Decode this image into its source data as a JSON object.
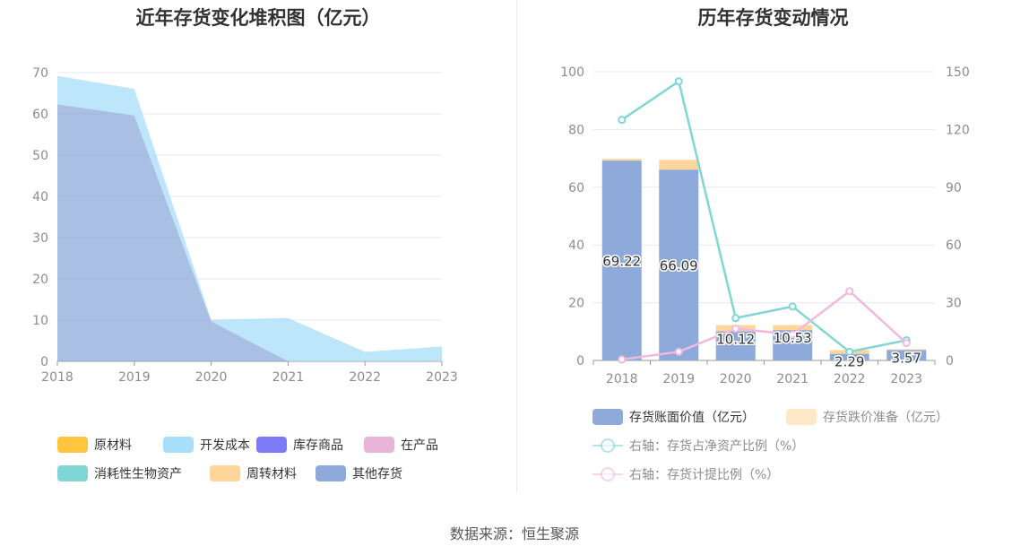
{
  "left_title": "近年存货变化堆积图（亿元）",
  "right_title": "历年存货变动情况",
  "source": "数据来源：恒生聚源",
  "chart_data": [
    {
      "type": "area",
      "stacked": true,
      "title": "近年存货变化堆积图（亿元）",
      "categories": [
        "2018",
        "2019",
        "2020",
        "2021",
        "2022",
        "2023"
      ],
      "ylim": [
        0,
        70
      ],
      "yticks": [
        0,
        10,
        20,
        30,
        40,
        50,
        60,
        70
      ],
      "grid": true,
      "legend_position": "bottom",
      "series": [
        {
          "name": "原材料",
          "color": "#ffc53d",
          "values": [
            0,
            0,
            0,
            0,
            0,
            0
          ]
        },
        {
          "name": "开发成本",
          "color": "#a8def9",
          "values": [
            6.9,
            6.5,
            0.4,
            10.5,
            2.3,
            3.6
          ]
        },
        {
          "name": "库存商品",
          "color": "#7b7bf5",
          "values": [
            0,
            0,
            0,
            0,
            0,
            0
          ]
        },
        {
          "name": "在产品",
          "color": "#e8b4d8",
          "values": [
            0,
            0,
            0,
            0,
            0,
            0
          ]
        },
        {
          "name": "消耗性生物资产",
          "color": "#80d6d6",
          "values": [
            0,
            0,
            0,
            0,
            0,
            0
          ]
        },
        {
          "name": "周转材料",
          "color": "#ffd699",
          "values": [
            0,
            0,
            0,
            0,
            0,
            0
          ]
        },
        {
          "name": "其他存货",
          "color": "#8eaadb",
          "values": [
            62.3,
            59.6,
            9.7,
            0,
            0,
            0
          ]
        }
      ]
    },
    {
      "type": "bar",
      "stacked": true,
      "title": "历年存货变动情况",
      "categories": [
        "2018",
        "2019",
        "2020",
        "2021",
        "2022",
        "2023"
      ],
      "ylim": [
        0,
        100
      ],
      "yticks": [
        0,
        20,
        40,
        60,
        80,
        100
      ],
      "y2lim": [
        0,
        150
      ],
      "y2ticks": [
        0,
        30,
        60,
        90,
        120,
        150
      ],
      "grid": true,
      "legend_position": "bottom",
      "series": [
        {
          "name": "存货账面价值（亿元）",
          "type": "bar",
          "color": "#8eaadb",
          "values": [
            69.22,
            66.09,
            10.12,
            10.53,
            2.29,
            3.57
          ],
          "labels": [
            "69.22",
            "66.09",
            "10.12",
            "10.53",
            "2.29",
            "3.57"
          ]
        },
        {
          "name": "存货跌价准备（亿元）",
          "type": "bar",
          "color": "#ffd699",
          "values": [
            0.6,
            3.4,
            2.1,
            1.7,
            1.3,
            0.3
          ]
        },
        {
          "name": "右轴：存货占净资产比例（%）",
          "type": "line",
          "axis": "right",
          "color": "#80d6d6",
          "values": [
            125,
            145,
            22,
            28,
            4.5,
            10.5
          ]
        },
        {
          "name": "右轴：存货计提比例（%）",
          "type": "line",
          "axis": "right",
          "color": "#f2b8dd",
          "values": [
            0.5,
            4.5,
            16.5,
            13.5,
            36,
            9
          ]
        }
      ]
    }
  ]
}
